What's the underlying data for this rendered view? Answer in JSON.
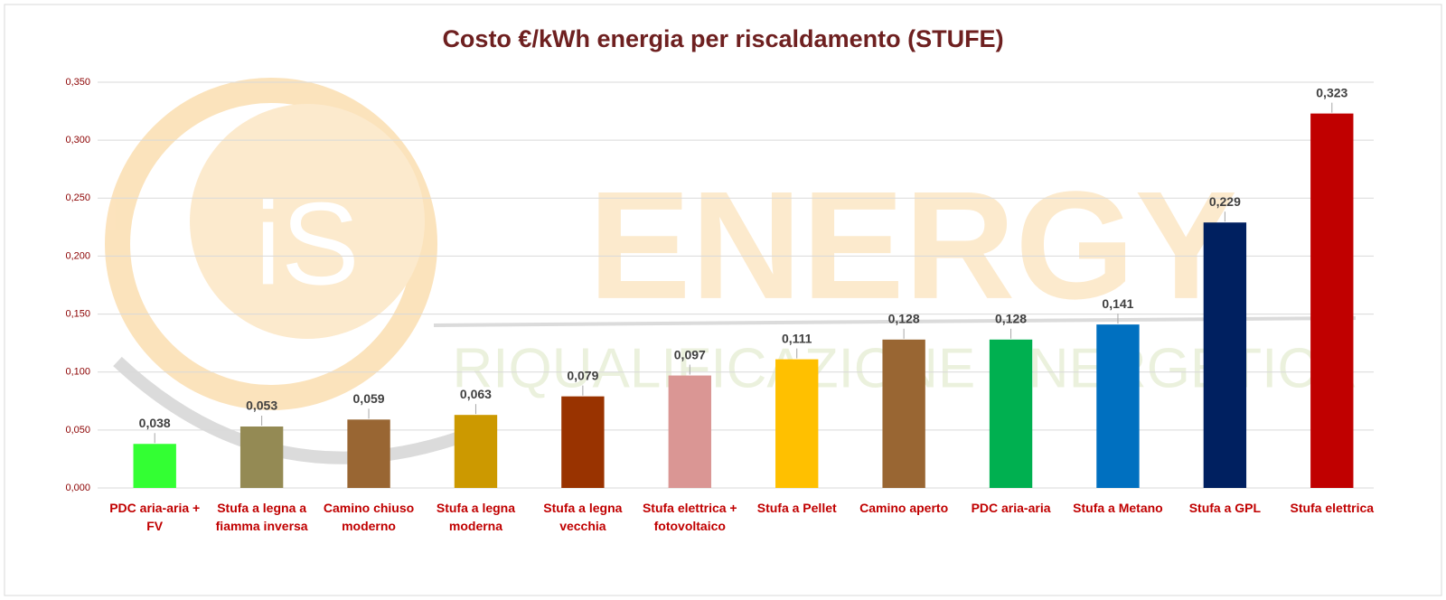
{
  "chart_data": {
    "type": "bar",
    "title": "Costo €/kWh energia per riscaldamento (STUFE)",
    "watermark": {
      "logo": "iS",
      "title": "ENERGY",
      "subtitle": "RIQUALIFICAZIONE ENERGETICA"
    },
    "categories": [
      "PDC aria-aria + FV",
      "Stufa a legna a fiamma inversa",
      "Camino chiuso moderno",
      "Stufa a legna moderna",
      "Stufa a legna vecchia",
      "Stufa elettrica + fotovoltaico",
      "Stufa a Pellet",
      "Camino aperto",
      "PDC aria-aria",
      "Stufa a Metano",
      "Stufa a GPL",
      "Stufa elettrica"
    ],
    "values": [
      0.038,
      0.053,
      0.059,
      0.063,
      0.079,
      0.097,
      0.111,
      0.128,
      0.128,
      0.141,
      0.229,
      0.323
    ],
    "value_labels": [
      "0,038",
      "0,053",
      "0,059",
      "0,063",
      "0,079",
      "0,097",
      "0,111",
      "0,128",
      "0,128",
      "0,141",
      "0,229",
      "0,323"
    ],
    "colors": [
      "#33ff33",
      "#948a54",
      "#996633",
      "#cc9900",
      "#993300",
      "#da9694",
      "#ffc000",
      "#996633",
      "#00b050",
      "#0070c0",
      "#002060",
      "#c00000"
    ],
    "ylim": [
      0,
      0.35
    ],
    "yticks": [
      {
        "value": 0,
        "label": "0,000"
      },
      {
        "value": 0.05,
        "label": "0,050"
      },
      {
        "value": 0.1,
        "label": "0,100"
      },
      {
        "value": 0.15,
        "label": "0,150"
      },
      {
        "value": 0.2,
        "label": "0,200"
      },
      {
        "value": 0.25,
        "label": "0,250"
      },
      {
        "value": 0.3,
        "label": "0,300"
      },
      {
        "value": 0.35,
        "label": "0,350"
      }
    ],
    "grid": true
  }
}
